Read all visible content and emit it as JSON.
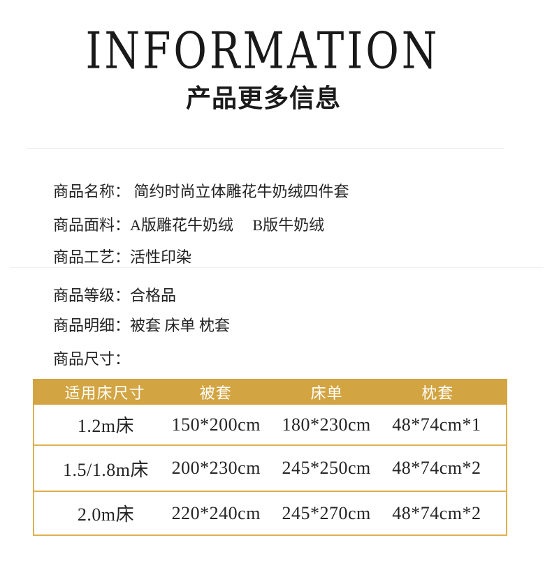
{
  "header": {
    "title_en": "INFORMATION",
    "title_cn": "产品更多信息"
  },
  "attributes": [
    {
      "label": "商品名称：",
      "value": " 简约时尚立体雕花牛奶绒四件套"
    },
    {
      "label": "商品面料：",
      "value": "A版雕花牛奶绒     B版牛奶绒"
    },
    {
      "label": "商品工艺：",
      "value": "活性印染"
    },
    {
      "label": "商品等级：",
      "value": "合格品"
    },
    {
      "label": "商品明细：",
      "value": "被套 床单 枕套"
    },
    {
      "label": "商品尺寸：",
      "value": ""
    }
  ],
  "size_table": {
    "headers": [
      "适用床尺寸",
      "被套",
      "床单",
      "枕套"
    ],
    "rows": [
      [
        "1.2m床",
        "150*200cm",
        "180*230cm",
        "48*74cm*1"
      ],
      [
        "1.5/1.8m床",
        "200*230cm",
        "245*250cm",
        "48*74cm*2"
      ],
      [
        "2.0m床",
        "220*240cm",
        "245*270cm",
        "48*74cm*2"
      ]
    ],
    "colors": {
      "header_bg": "#d2a442",
      "border": "#dfb04e",
      "header_text": "#ffffff"
    }
  }
}
